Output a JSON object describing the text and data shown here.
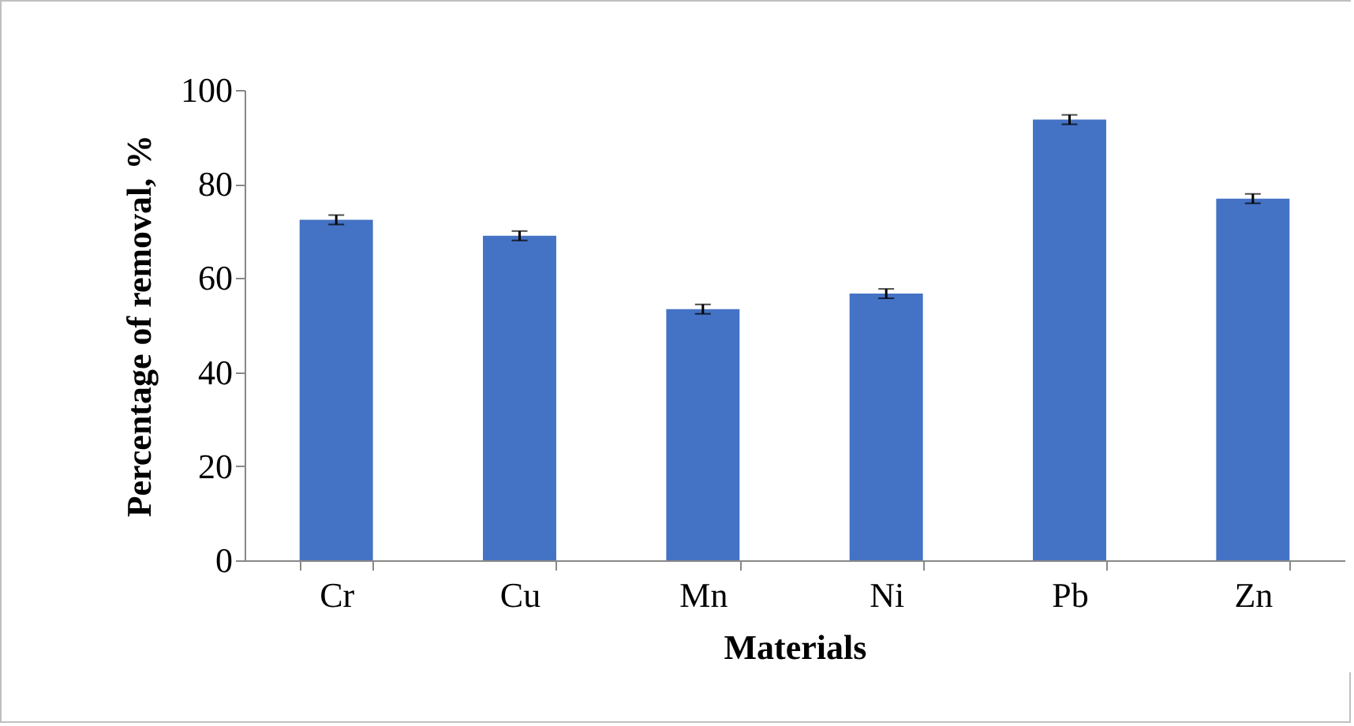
{
  "chart_data": {
    "type": "bar",
    "xlabel": "Materials",
    "ylabel": "Percentage of  removal, %",
    "categories": [
      "Cr",
      "Cu",
      "Mn",
      "Ni",
      "Pb",
      "Zn"
    ],
    "values": [
      72.4,
      69.0,
      53.4,
      56.7,
      93.7,
      76.9
    ],
    "errors": [
      1,
      1,
      1,
      1,
      1,
      1
    ],
    "color": "#4472c4",
    "ylim": [
      0,
      100
    ],
    "yticks": [
      0,
      20,
      40,
      60,
      80,
      100
    ],
    "grid": false
  }
}
